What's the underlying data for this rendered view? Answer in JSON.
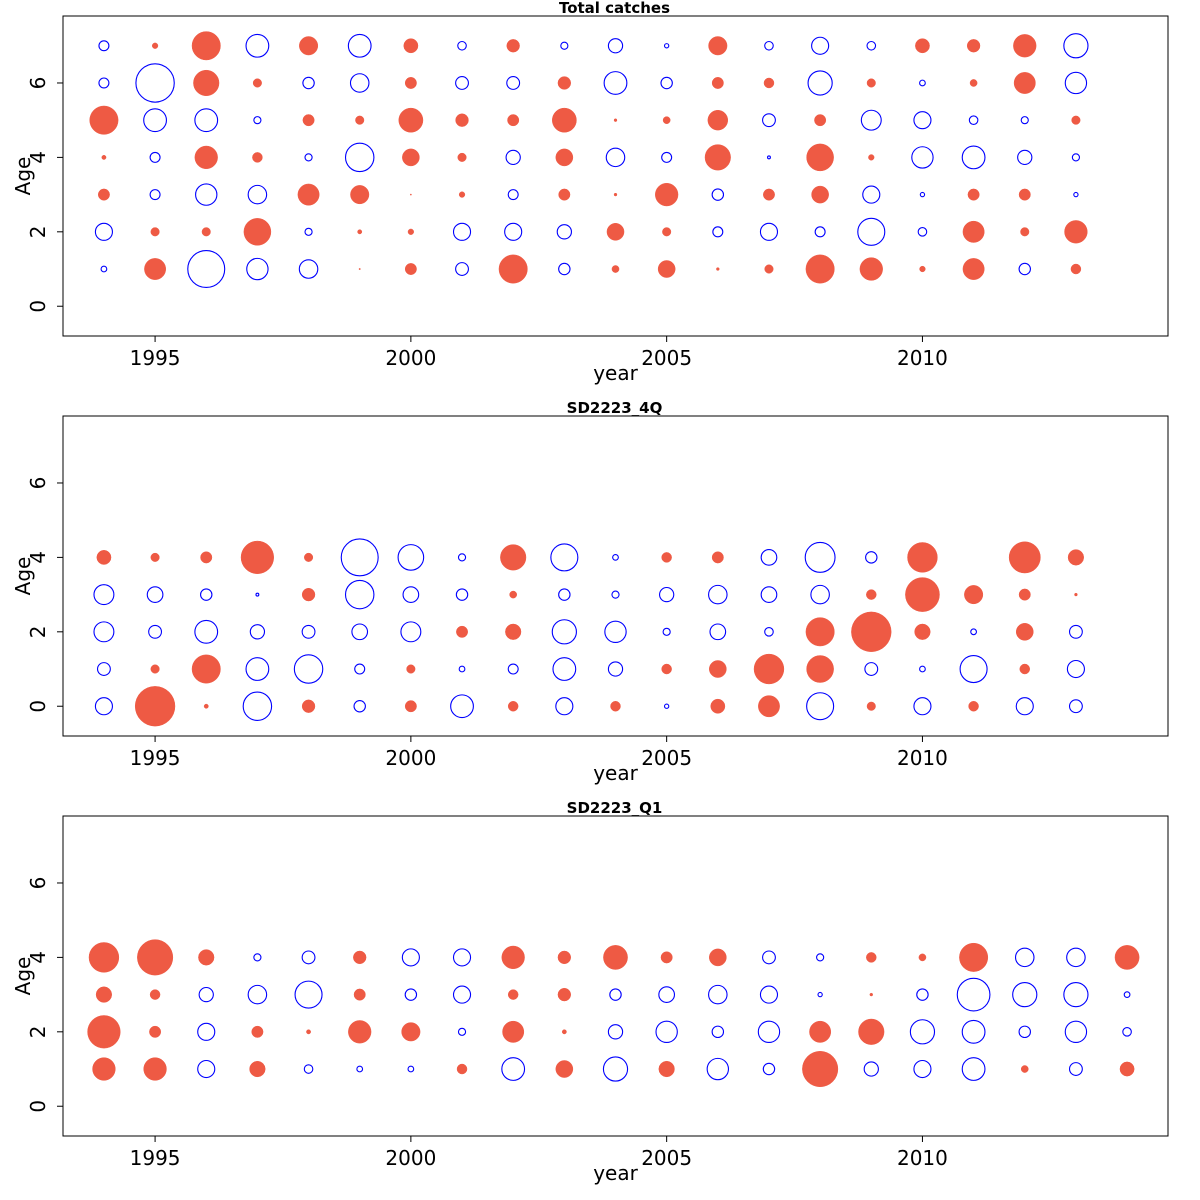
{
  "colors": {
    "positive": "#EE5A44",
    "negative": "#0000FF"
  },
  "chart_data": [
    {
      "type": "scatter",
      "subtype": "bubble-residuals",
      "title": "Total catches",
      "xlabel": "year",
      "ylabel": "Age",
      "xlim": [
        1993.2,
        2014.8
      ],
      "ylim": [
        -0.8,
        7.8
      ],
      "xticks": [
        "1995",
        "2000",
        "2005",
        "2010"
      ],
      "yticks": [
        "0",
        "2",
        "4",
        "6"
      ],
      "years": [
        1994,
        1995,
        1996,
        1997,
        1998,
        1999,
        2000,
        2001,
        2002,
        2003,
        2004,
        2005,
        2006,
        2007,
        2008,
        2009,
        2010,
        2011,
        2012,
        2013
      ],
      "ages": [
        1,
        2,
        3,
        4,
        5,
        6,
        7
      ],
      "residuals": [
        [
          -0.4,
          1.5,
          -2.6,
          -1.5,
          -1.3,
          0.1,
          0.8,
          -0.9,
          2.0,
          -0.8,
          0.5,
          1.2,
          0.2,
          0.6,
          2.0,
          1.6,
          0.4,
          1.5,
          -0.8,
          0.7
        ],
        [
          -1.2,
          0.6,
          0.6,
          1.9,
          -0.5,
          0.3,
          0.4,
          -1.2,
          -1.2,
          -1.0,
          1.2,
          0.6,
          -0.7,
          -1.2,
          -0.7,
          -1.9,
          -0.6,
          1.5,
          0.6,
          1.6
        ],
        [
          0.8,
          -0.7,
          -1.5,
          -1.3,
          1.5,
          1.3,
          0.05,
          0.4,
          -0.7,
          0.8,
          0.2,
          1.6,
          -0.8,
          0.8,
          1.2,
          -1.2,
          -0.3,
          0.8,
          0.8,
          -0.3
        ],
        [
          0.3,
          -0.7,
          1.6,
          0.7,
          -0.5,
          -2.0,
          1.2,
          0.6,
          -1.0,
          1.2,
          -1.3,
          -0.7,
          1.8,
          -0.2,
          1.9,
          0.4,
          -1.5,
          -1.6,
          -1.0,
          -0.5
        ],
        [
          2.0,
          -1.6,
          -1.6,
          -0.5,
          0.8,
          0.6,
          1.7,
          0.9,
          0.8,
          1.7,
          0.2,
          0.5,
          1.4,
          -0.9,
          0.8,
          -1.4,
          -1.2,
          -0.6,
          -0.5,
          0.6
        ],
        [
          -0.7,
          -2.7,
          1.8,
          0.6,
          -0.8,
          -1.3,
          0.8,
          -0.9,
          -0.9,
          0.9,
          -1.6,
          -0.8,
          0.8,
          0.7,
          -1.7,
          0.6,
          -0.4,
          0.5,
          1.5,
          -1.5
        ],
        [
          -0.7,
          0.4,
          2.0,
          -1.6,
          1.3,
          -1.6,
          1.0,
          -0.6,
          0.9,
          -0.5,
          -1.0,
          -0.3,
          1.3,
          -0.6,
          -1.2,
          -0.6,
          1.0,
          0.9,
          1.6,
          -1.7
        ]
      ]
    },
    {
      "type": "scatter",
      "subtype": "bubble-residuals",
      "title": "SD2223_4Q",
      "xlabel": "year",
      "ylabel": "Age",
      "xlim": [
        1993.2,
        2014.8
      ],
      "ylim": [
        -0.8,
        7.8
      ],
      "xticks": [
        "1995",
        "2000",
        "2005",
        "2010"
      ],
      "yticks": [
        "0",
        "2",
        "4",
        "6"
      ],
      "years": [
        1994,
        1995,
        1996,
        1997,
        1998,
        1999,
        2000,
        2001,
        2002,
        2003,
        2004,
        2005,
        2006,
        2007,
        2008,
        2009,
        2010,
        2011,
        2012,
        2013
      ],
      "ages": [
        0,
        1,
        2,
        3,
        4
      ],
      "residuals": [
        [
          -1.2,
          2.8,
          0.3,
          -2.0,
          0.9,
          -0.8,
          0.8,
          -1.6,
          0.7,
          -1.2,
          0.7,
          -0.3,
          1.0,
          1.5,
          -1.9,
          0.6,
          -1.2,
          0.7,
          -1.2,
          -0.9
        ],
        [
          -0.9,
          0.6,
          2.0,
          -1.6,
          -2.0,
          -0.7,
          0.6,
          -0.4,
          -0.7,
          -1.6,
          -1.0,
          0.7,
          1.2,
          2.1,
          1.9,
          -0.9,
          -0.4,
          -1.9,
          0.7,
          -1.2
        ],
        [
          -1.4,
          -0.9,
          -1.6,
          -1.0,
          -0.9,
          -1.1,
          -1.4,
          0.8,
          1.1,
          -1.7,
          -1.5,
          -0.5,
          -1.1,
          -0.6,
          2.0,
          2.8,
          1.1,
          -0.4,
          1.2,
          -0.9
        ],
        [
          -1.4,
          -1.1,
          -0.8,
          -0.2,
          0.9,
          -2.0,
          -1.1,
          -0.8,
          0.5,
          -0.8,
          -0.5,
          -1.0,
          -1.3,
          -1.1,
          -1.3,
          0.7,
          2.4,
          1.3,
          0.8,
          0.2
        ],
        [
          1.0,
          0.6,
          0.8,
          2.3,
          0.6,
          -2.6,
          -1.8,
          -0.5,
          1.8,
          -1.9,
          -0.4,
          0.7,
          0.8,
          -1.1,
          -2.1,
          -0.8,
          2.1,
          0.0,
          2.2,
          1.1
        ]
      ]
    },
    {
      "type": "scatter",
      "subtype": "bubble-residuals",
      "title": "SD2223_Q1",
      "xlabel": "year",
      "ylabel": "Age",
      "xlim": [
        1993.2,
        2014.8
      ],
      "ylim": [
        -0.8,
        7.8
      ],
      "xticks": [
        "1995",
        "2000",
        "2005",
        "2010"
      ],
      "yticks": [
        "0",
        "2",
        "4",
        "6"
      ],
      "years": [
        1994,
        1995,
        1996,
        1997,
        1998,
        1999,
        2000,
        2001,
        2002,
        2003,
        2004,
        2005,
        2006,
        2007,
        2008,
        2009,
        2010,
        2011,
        2012,
        2013,
        2014
      ],
      "ages": [
        1,
        2,
        3,
        4
      ],
      "residuals": [
        [
          1.6,
          1.6,
          -1.2,
          1.1,
          -0.6,
          -0.4,
          -0.4,
          0.7,
          -1.6,
          1.2,
          -1.7,
          1.1,
          -1.5,
          -0.8,
          2.5,
          -1.0,
          -1.2,
          -1.6,
          0.5,
          -0.9,
          1.0
        ],
        [
          2.3,
          0.8,
          -1.2,
          0.8,
          0.3,
          1.6,
          1.3,
          -0.5,
          1.5,
          0.3,
          -1.0,
          -1.5,
          -0.8,
          -1.5,
          1.5,
          1.8,
          -1.7,
          -1.6,
          -0.8,
          -1.5,
          -0.6
        ],
        [
          1.1,
          0.7,
          -1.0,
          -1.3,
          -1.9,
          0.8,
          -0.8,
          -1.2,
          0.7,
          0.9,
          -0.8,
          -1.1,
          -1.3,
          -1.2,
          -0.3,
          0.2,
          -0.8,
          -2.3,
          -1.7,
          -1.7,
          -0.4
        ],
        [
          2.1,
          2.5,
          1.1,
          -0.5,
          -0.9,
          0.9,
          -1.2,
          -1.2,
          1.6,
          0.9,
          1.7,
          0.8,
          1.2,
          -0.9,
          -0.5,
          0.7,
          0.5,
          2.0,
          -1.3,
          -1.3,
          1.7
        ]
      ]
    }
  ]
}
